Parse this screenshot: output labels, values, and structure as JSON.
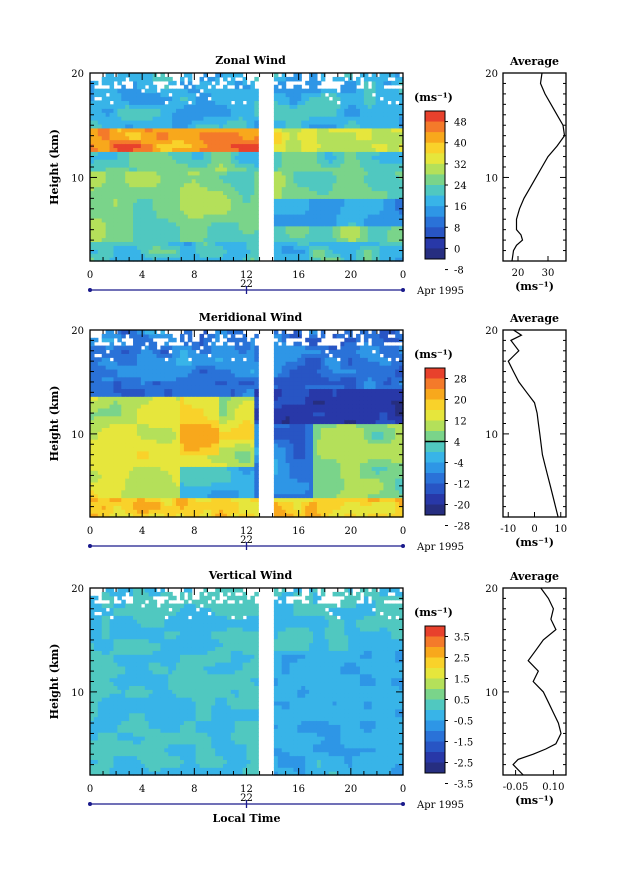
{
  "figure": {
    "x_axis_title": "Local Time",
    "date_label": "Apr 1995"
  },
  "chart_data": [
    {
      "type": "heatmap",
      "title": "Zonal Wind",
      "ylabel": "Height (km)",
      "ylim": [
        2,
        20
      ],
      "y_ticks": [
        "20",
        "10"
      ],
      "xlim": [
        0,
        24
      ],
      "x_ticks": [
        "0",
        "4",
        "8",
        "12",
        "16",
        "20",
        "0"
      ],
      "date_tick": "22",
      "data_gap": [
        12.8,
        14.0
      ],
      "colorbar": {
        "unit": "(ms⁻¹)",
        "labels": [
          "48",
          "40",
          "32",
          "24",
          "16",
          "8",
          "0",
          "-8"
        ],
        "colors": [
          "#e8412c",
          "#f47a2a",
          "#f8a81c",
          "#f9d22a",
          "#e6e63c",
          "#b4e05a",
          "#7ad48a",
          "#50c8c0",
          "#38b4e8",
          "#2e96e6",
          "#2a72d8",
          "#2855c4",
          "#2838a8",
          "#262e80"
        ],
        "zero_line_index": 12
      },
      "average": {
        "title": "Average",
        "ylabel": "",
        "xlim": [
          15,
          36
        ],
        "x_ticks": [
          "20",
          "30"
        ],
        "y_ticks": [
          "20",
          "10"
        ],
        "unit": "(ms⁻¹)",
        "x": [
          28,
          27.5,
          29,
          31,
          33,
          35,
          35.5,
          33,
          30,
          28,
          26,
          24,
          22,
          20.5,
          19.5,
          19.5,
          21,
          21.5,
          19.5,
          18.5,
          18
        ],
        "heights": [
          20,
          19,
          18,
          17,
          16,
          15,
          14,
          13,
          12,
          11,
          10,
          9,
          8,
          7,
          6,
          5,
          4.5,
          4,
          3.5,
          3,
          2
        ]
      }
    },
    {
      "type": "heatmap",
      "title": "Meridional Wind",
      "ylabel": "Height (km)",
      "ylim": [
        2,
        20
      ],
      "y_ticks": [
        "20",
        "10"
      ],
      "xlim": [
        0,
        24
      ],
      "x_ticks": [
        "0",
        "4",
        "8",
        "12",
        "16",
        "20",
        "0"
      ],
      "date_tick": "22",
      "data_gap": [
        12.8,
        14.0
      ],
      "colorbar": {
        "unit": "(ms⁻¹)",
        "labels": [
          "28",
          "20",
          "12",
          "4",
          "-4",
          "-12",
          "-20",
          "-28"
        ],
        "colors": [
          "#e8412c",
          "#f47a2a",
          "#f8a81c",
          "#f9d22a",
          "#e6e63c",
          "#b4e05a",
          "#7ad48a",
          "#50c8c0",
          "#38b4e8",
          "#2e96e6",
          "#2a72d8",
          "#2855c4",
          "#2838a8",
          "#262e80"
        ],
        "zero_line_index": 7
      },
      "average": {
        "title": "Average",
        "ylabel": "",
        "xlim": [
          -12,
          12
        ],
        "x_ticks": [
          "-10",
          "0",
          "10"
        ],
        "y_ticks": [
          "20",
          "10"
        ],
        "unit": "(ms⁻¹)",
        "x": [
          -8,
          -5,
          -9,
          -6,
          -8,
          -10,
          -8,
          -6,
          -3,
          0,
          1,
          1.5,
          2,
          2.5,
          3,
          4,
          5,
          6,
          7,
          8,
          9
        ],
        "heights": [
          20,
          19.5,
          19,
          18,
          17.5,
          17,
          16,
          15,
          14,
          13,
          12,
          11,
          10,
          9,
          8,
          7,
          6,
          5,
          4,
          3,
          2
        ]
      }
    },
    {
      "type": "heatmap",
      "title": "Vertical Wind",
      "ylabel": "Height (km)",
      "ylim": [
        2,
        20
      ],
      "y_ticks": [
        "20",
        "10"
      ],
      "xlim": [
        0,
        24
      ],
      "x_ticks": [
        "0",
        "4",
        "8",
        "12",
        "16",
        "20",
        "0"
      ],
      "date_tick": "22",
      "data_gap": [
        12.8,
        14.0
      ],
      "colorbar": {
        "unit": "(ms⁻¹)",
        "labels": [
          "3.5",
          "2.5",
          "1.5",
          "0.5",
          "-0.5",
          "-1.5",
          "-2.5",
          "-3.5"
        ],
        "colors": [
          "#e8412c",
          "#f47a2a",
          "#f8a81c",
          "#f9d22a",
          "#e6e63c",
          "#b4e05a",
          "#7ad48a",
          "#50c8c0",
          "#38b4e8",
          "#2e96e6",
          "#2a72d8",
          "#2855c4",
          "#2838a8",
          "#262e80"
        ],
        "zero_line_index": -1
      },
      "average": {
        "title": "Average",
        "ylabel": "",
        "xlim": [
          -0.1,
          0.15
        ],
        "x_ticks": [
          "-0.05",
          "0.10"
        ],
        "y_ticks": [
          "20",
          "10"
        ],
        "unit": "(ms⁻¹)",
        "x": [
          0.05,
          0.08,
          0.1,
          0.09,
          0.11,
          0.06,
          0.03,
          0.0,
          0.04,
          0.02,
          0.06,
          0.08,
          0.1,
          0.12,
          0.13,
          0.11,
          0.07,
          0.02,
          -0.04,
          -0.06,
          -0.02
        ],
        "heights": [
          20,
          19,
          18,
          17,
          16,
          15,
          14,
          13,
          12,
          11,
          10,
          9,
          8,
          7,
          6,
          5,
          4.5,
          4,
          3.5,
          3,
          2
        ]
      }
    }
  ]
}
